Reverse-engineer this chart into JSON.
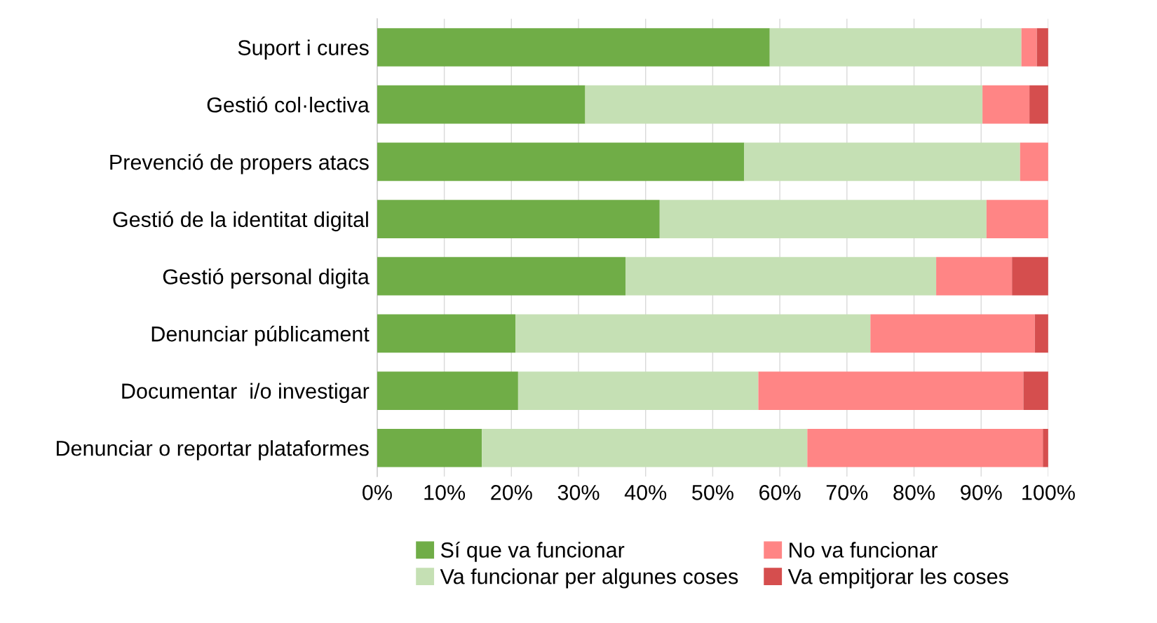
{
  "chart_data": {
    "type": "bar",
    "orientation": "horizontal",
    "stacked": true,
    "categories": [
      "Suport i cures",
      "Gestió col·lectiva",
      "Prevenció de propers atacs",
      "Gestió de la identitat digital",
      "Gestió personal digita",
      "Denunciar públicament",
      "Documentar  i/o investigar",
      "Denunciar o reportar plataformes"
    ],
    "series": [
      {
        "name": "Sí que va funcionar",
        "color": "#70ad47",
        "values": [
          58.5,
          31.0,
          54.7,
          42.1,
          37.0,
          20.6,
          21.0,
          15.6
        ]
      },
      {
        "name": "Va funcionar per algunes coses",
        "color": "#c5e0b4",
        "values": [
          37.5,
          59.2,
          41.1,
          48.7,
          46.3,
          52.9,
          35.8,
          48.5
        ]
      },
      {
        "name": "No va funcionar",
        "color": "#ff8585",
        "values": [
          2.3,
          7.0,
          4.2,
          9.2,
          11.3,
          24.5,
          39.5,
          35.1
        ]
      },
      {
        "name": "Va empitjorar les coses",
        "color": "#d54e4e",
        "values": [
          1.7,
          2.8,
          0,
          0,
          5.4,
          2.0,
          3.7,
          0.8
        ]
      }
    ],
    "xlim": [
      0,
      100
    ],
    "xticks": [
      {
        "value": 0,
        "label": "0%"
      },
      {
        "value": 10,
        "label": "10%"
      },
      {
        "value": 20,
        "label": "20%"
      },
      {
        "value": 30,
        "label": "30%"
      },
      {
        "value": 40,
        "label": "40%"
      },
      {
        "value": 50,
        "label": "50%"
      },
      {
        "value": 60,
        "label": "60%"
      },
      {
        "value": 70,
        "label": "70%"
      },
      {
        "value": 80,
        "label": "80%"
      },
      {
        "value": 90,
        "label": "90%"
      },
      {
        "value": 100,
        "label": "100%"
      }
    ],
    "grid": "x",
    "legend": "bottom"
  }
}
